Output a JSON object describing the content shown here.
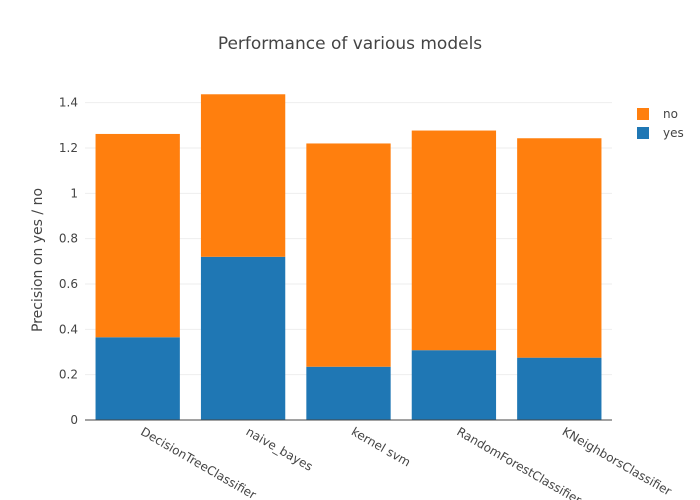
{
  "chart_data": {
    "type": "bar",
    "stacked": true,
    "title": "Performance of various models",
    "xlabel": "",
    "ylabel": "Precision on yes / no",
    "categories": [
      "DecisionTreeClassifier",
      "naive_bayes",
      "kernel svm",
      "RandomForestClassifier",
      "KNeighborsClassifier"
    ],
    "series": [
      {
        "name": "yes",
        "color": "#1f77b4",
        "values": [
          0.365,
          0.72,
          0.235,
          0.308,
          0.275
        ]
      },
      {
        "name": "no",
        "color": "#ff7f0e",
        "values": [
          0.897,
          0.717,
          0.985,
          0.969,
          0.968
        ]
      }
    ],
    "ylim": [
      0,
      1.5
    ],
    "yticks": [
      "0",
      "0.2",
      "0.4",
      "0.6",
      "0.8",
      "1",
      "1.2",
      "1.4"
    ],
    "grid": true,
    "legend": "top-right"
  }
}
